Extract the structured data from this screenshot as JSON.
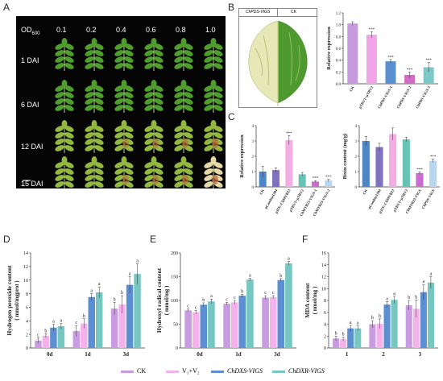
{
  "panel_labels": {
    "A": "A",
    "B": "B",
    "C": "C",
    "D": "D",
    "E": "E",
    "F": "F"
  },
  "panel_a": {
    "od_label": "OD",
    "od_sub": "600",
    "od_values": [
      "0.1",
      "0.2",
      "0.4",
      "0.6",
      "0.8",
      "1.0"
    ],
    "rows": [
      "1 DAI",
      "6 DAI",
      "12 DAI",
      "15 DAI"
    ]
  },
  "panel_b_image": {
    "left": "ChPDS-VIGS",
    "right": "CK"
  },
  "chart_data": [
    {
      "id": "B",
      "type": "bar",
      "ylabel": "Relative expression",
      "ylim": [
        0,
        1.2
      ],
      "yticks": [
        "0.0",
        "0.2",
        "0.4",
        "0.6",
        "0.8",
        "1.0",
        "1.2"
      ],
      "categories": [
        "CK",
        "pTRV1+pTRV2",
        "ChPDS-VIGS-1",
        "ChPDS-VIGS-2",
        "ChPDS-VIGS-3"
      ],
      "values": [
        1.02,
        0.83,
        0.38,
        0.15,
        0.28
      ],
      "errors": [
        0.03,
        0.05,
        0.03,
        0.05,
        0.08
      ],
      "sig": [
        "",
        "***",
        "***",
        "***",
        "***"
      ],
      "colors": [
        "#c79adf",
        "#f0a6e6",
        "#5a8fd0",
        "#d26bc8",
        "#7ec7c7"
      ]
    },
    {
      "id": "C1",
      "type": "bar",
      "ylabel": "Relative expression",
      "ylim": [
        0,
        4
      ],
      "yticks": [
        "0",
        "1",
        "2",
        "3",
        "4"
      ],
      "categories": [
        "CK",
        "pCambia1304",
        "p35S::ChMYB23",
        "pTRV1+pTRV2",
        "ChMYB23-VIGS-1",
        "ChMYB23-VIGS-2"
      ],
      "values": [
        1.0,
        1.1,
        3.05,
        0.82,
        0.35,
        0.42
      ],
      "errors": [
        0.35,
        0.15,
        0.3,
        0.12,
        0.06,
        0.08
      ],
      "sig": [
        "",
        "",
        "***",
        "",
        "***",
        "***"
      ],
      "colors": [
        "#4f86c6",
        "#7f73c0",
        "#f2aee2",
        "#68c3b7",
        "#c96ed0",
        "#b7d6ef"
      ]
    },
    {
      "id": "C2",
      "type": "bar",
      "ylabel": "Bixin content (mg/g)",
      "ylim": [
        0,
        4
      ],
      "yticks": [
        "0",
        "1",
        "2",
        "3",
        "4"
      ],
      "categories": [
        "CK",
        "pCambia1304",
        "p35S::ChMYB23",
        "pTRV1+pTRV2",
        "ChMYB23-VIGS",
        "ChPDS-VIGS"
      ],
      "values": [
        3.0,
        2.6,
        3.45,
        3.1,
        0.9,
        1.7
      ],
      "errors": [
        0.3,
        0.25,
        0.4,
        0.15,
        0.08,
        0.12
      ],
      "sig": [
        "",
        "",
        "",
        "",
        "***",
        "***"
      ],
      "colors": [
        "#4f86c6",
        "#7f73c0",
        "#f2aee2",
        "#68c3b7",
        "#c96ed0",
        "#b7d6ef"
      ]
    },
    {
      "id": "D",
      "type": "bar",
      "ylabel": "Hydrogen peroxide content",
      "ylabel2": "( mmol/mgprot )",
      "ylim": [
        0,
        14
      ],
      "yticks": [
        "0",
        "2",
        "4",
        "6",
        "8",
        "10",
        "12",
        "14"
      ],
      "categories": [
        "0d",
        "1d",
        "3d"
      ],
      "series": [
        {
          "name": "CK",
          "color": "#c99be0",
          "values": [
            1.1,
            2.5,
            5.8
          ],
          "errors": [
            0.4,
            0.8,
            0.9
          ],
          "letters": [
            "c",
            "c",
            "b"
          ]
        },
        {
          "name": "V₁+V₂",
          "color": "#f3b3ea",
          "values": [
            1.8,
            3.6,
            6.4
          ],
          "errors": [
            0.3,
            0.7,
            1.3
          ],
          "letters": [
            "b",
            "b",
            "b"
          ]
        },
        {
          "name": "ChDXS-VIGS",
          "color": "#5b8fd1",
          "values": [
            3.0,
            7.5,
            9.3
          ],
          "errors": [
            0.5,
            0.5,
            1.2
          ],
          "letters": [
            "a",
            "a",
            "a"
          ]
        },
        {
          "name": "ChDXR-VIGS",
          "color": "#76c6c2",
          "values": [
            3.2,
            8.2,
            10.9
          ],
          "errors": [
            0.4,
            0.8,
            1.5
          ],
          "letters": [
            "a",
            "a",
            "a"
          ]
        }
      ]
    },
    {
      "id": "E",
      "type": "bar",
      "ylabel": "Hydroxyl radical content",
      "ylabel2": "( mmol/mg )",
      "ylim": [
        0,
        200
      ],
      "yticks": [
        "0",
        "50",
        "100",
        "150",
        "200"
      ],
      "categories": [
        "0d",
        "1d",
        "3d"
      ],
      "series": [
        {
          "name": "CK",
          "color": "#c99be0",
          "values": [
            79,
            93,
            106
          ],
          "errors": [
            3,
            3,
            4
          ],
          "letters": [
            "c",
            "c",
            "c"
          ]
        },
        {
          "name": "V₁+V₂",
          "color": "#f3b3ea",
          "values": [
            75,
            96,
            107
          ],
          "errors": [
            4,
            4,
            3
          ],
          "letters": [
            "c",
            "c",
            "c"
          ]
        },
        {
          "name": "ChDXS-VIGS",
          "color": "#5b8fd1",
          "values": [
            91,
            110,
            143
          ],
          "errors": [
            4,
            3,
            3
          ],
          "letters": [
            "b",
            "b",
            "b"
          ]
        },
        {
          "name": "ChDXR-VIGS",
          "color": "#76c6c2",
          "values": [
            98,
            144,
            178
          ],
          "errors": [
            5,
            3,
            4
          ],
          "letters": [
            "a",
            "a",
            "a"
          ]
        }
      ]
    },
    {
      "id": "F",
      "type": "bar",
      "ylabel": "MDA content",
      "ylabel2": "( nmol/mg )",
      "ylim": [
        0,
        16
      ],
      "yticks": [
        "0",
        "2",
        "4",
        "6",
        "8",
        "10",
        "12",
        "14",
        "16"
      ],
      "categories": [
        "1",
        "2",
        "3"
      ],
      "series": [
        {
          "name": "CK",
          "color": "#c99be0",
          "values": [
            1.6,
            4.0,
            7.2
          ],
          "errors": [
            0.4,
            0.6,
            0.8
          ],
          "letters": [
            "b",
            "b",
            "b"
          ]
        },
        {
          "name": "V₁+V₂",
          "color": "#f3b3ea",
          "values": [
            1.5,
            4.1,
            6.6
          ],
          "errors": [
            0.3,
            0.8,
            1.5
          ],
          "letters": [
            "b",
            "b",
            "b"
          ]
        },
        {
          "name": "ChDXS-VIGS",
          "color": "#5b8fd1",
          "values": [
            3.3,
            7.3,
            9.4
          ],
          "errors": [
            0.5,
            0.5,
            1.3
          ],
          "letters": [
            "a",
            "a",
            "a"
          ]
        },
        {
          "name": "ChDXR-VIGS",
          "color": "#76c6c2",
          "values": [
            3.3,
            8.1,
            11.0
          ],
          "errors": [
            0.4,
            0.6,
            1.0
          ],
          "letters": [
            "a",
            "a",
            "a"
          ]
        }
      ]
    }
  ],
  "legend": [
    {
      "label": "CK",
      "color": "#c99be0"
    },
    {
      "label": "V₁+V₂",
      "color": "#f3b3ea"
    },
    {
      "label": "ChDXS-VIGS",
      "color": "#5b8fd1"
    },
    {
      "label": "ChDXR-VIGS",
      "color": "#76c6c2"
    }
  ]
}
